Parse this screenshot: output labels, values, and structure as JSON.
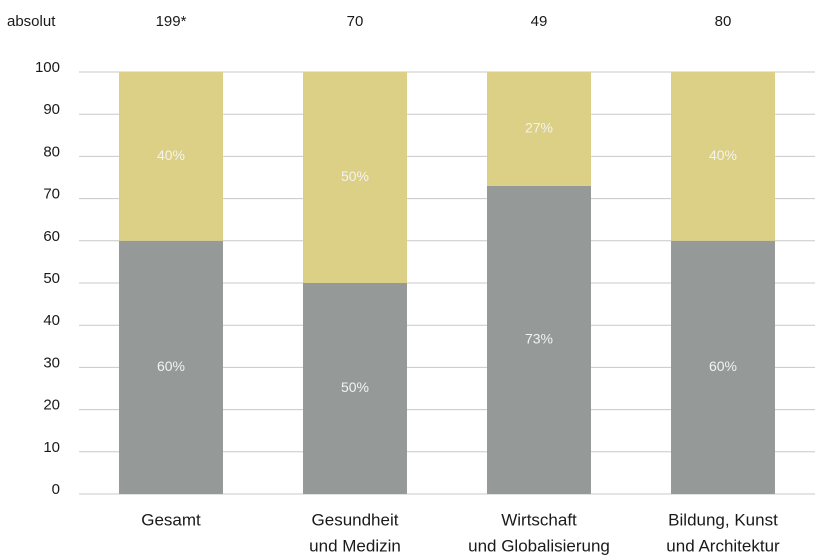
{
  "chart_data": {
    "type": "stacked-bar",
    "categories": [
      [
        "Gesamt"
      ],
      [
        "Gesundheit",
        "und Medizin"
      ],
      [
        "Wirtschaft",
        "und Globalisierung"
      ],
      [
        "Bildung, Kunst",
        "und Architektur"
      ]
    ],
    "absolut_label": "absolut",
    "absolut": [
      {
        "value": 199,
        "label": "199*"
      },
      70,
      49,
      80
    ],
    "series": [
      {
        "color": "#959a98",
        "values": [
          60,
          50,
          73,
          60
        ],
        "value_labels": [
          "60%",
          "50%",
          "73%",
          "60%"
        ]
      },
      {
        "color": "#dccf86",
        "values": [
          40,
          50,
          27,
          40
        ],
        "value_labels": [
          "40%",
          "50%",
          "27%",
          "40%"
        ]
      }
    ],
    "ylim": [
      0,
      100
    ],
    "yticks": [
      0,
      10,
      20,
      30,
      40,
      50,
      60,
      70,
      80,
      90,
      100
    ],
    "grid": true
  }
}
